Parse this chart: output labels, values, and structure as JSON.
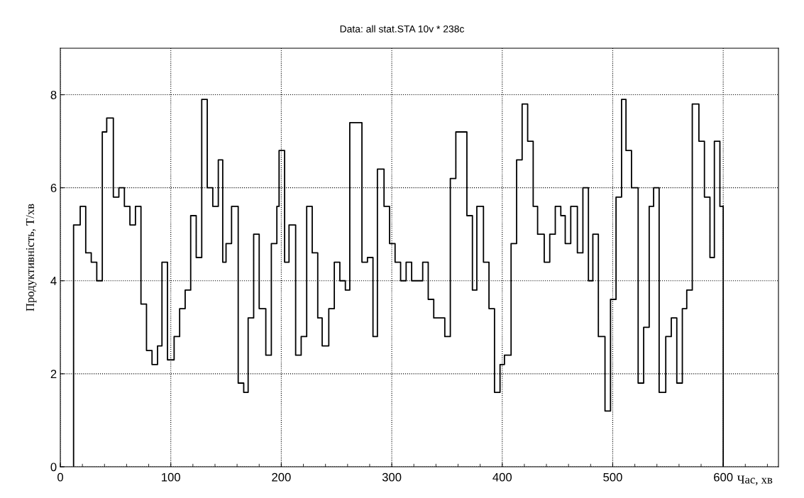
{
  "chart_data": {
    "type": "step",
    "title": "Data: all stat.STA 10v * 238c",
    "xlabel": "Час, хв",
    "ylabel": "Продуктивність, Т/хв",
    "xlim": [
      0,
      650
    ],
    "xticks": [
      0,
      100,
      200,
      300,
      400,
      500,
      600
    ],
    "ylim": [
      0,
      9
    ],
    "yticks": [
      0,
      2,
      4,
      6,
      8
    ],
    "grid": true,
    "line_style": "solid",
    "marker": "none",
    "series": [
      {
        "color": "#000000",
        "x": [
          12,
          12,
          18,
          23,
          28,
          33,
          38,
          42,
          48,
          53,
          58,
          63,
          68,
          73,
          78,
          83,
          88,
          92,
          97,
          103,
          108,
          113,
          118,
          123,
          128,
          133,
          138,
          143,
          147,
          150,
          155,
          161,
          166,
          170,
          175,
          180,
          186,
          191,
          196,
          198,
          203,
          207,
          213,
          218,
          223,
          228,
          233,
          237,
          243,
          248,
          253,
          258,
          262,
          273,
          278,
          283,
          287,
          293,
          298,
          303,
          308,
          313,
          318,
          328,
          333,
          338,
          348,
          353,
          358,
          368,
          373,
          377,
          383,
          388,
          393,
          398,
          402,
          408,
          413,
          418,
          423,
          428,
          432,
          438,
          443,
          448,
          453,
          457,
          462,
          468,
          473,
          478,
          482,
          487,
          493,
          498,
          503,
          508,
          512,
          517,
          523,
          528,
          533,
          537,
          542,
          548,
          553,
          558,
          563,
          567,
          572,
          578,
          583,
          588,
          592,
          597,
          600
        ],
        "values": [
          0,
          5.2,
          5.6,
          4.6,
          4.4,
          4.0,
          7.2,
          7.5,
          5.8,
          6.0,
          5.6,
          5.2,
          5.6,
          3.5,
          2.5,
          2.2,
          2.6,
          4.4,
          2.3,
          2.8,
          3.4,
          3.8,
          5.4,
          4.5,
          7.9,
          6.0,
          5.6,
          6.6,
          4.4,
          4.8,
          5.6,
          1.8,
          1.6,
          3.2,
          5.0,
          3.4,
          2.4,
          4.8,
          5.6,
          6.8,
          4.4,
          5.2,
          2.4,
          2.8,
          5.6,
          4.6,
          3.2,
          2.6,
          3.4,
          4.4,
          4.0,
          3.8,
          7.4,
          4.4,
          4.5,
          2.8,
          6.4,
          5.6,
          4.8,
          4.4,
          4.0,
          4.4,
          4.0,
          4.4,
          3.6,
          3.2,
          2.8,
          6.2,
          7.2,
          5.4,
          3.8,
          5.6,
          4.4,
          3.4,
          1.6,
          2.2,
          2.4,
          4.8,
          6.6,
          7.8,
          7.0,
          5.6,
          5.0,
          4.4,
          5.0,
          5.6,
          5.4,
          4.8,
          5.6,
          4.6,
          6.0,
          4.0,
          5.0,
          2.8,
          1.2,
          3.6,
          5.8,
          7.9,
          6.8,
          6.0,
          1.8,
          3.0,
          5.6,
          6.0,
          1.6,
          2.8,
          3.2,
          1.8,
          3.4,
          3.8,
          7.8,
          7.0,
          5.8,
          4.5,
          7.0,
          5.6,
          0
        ]
      }
    ]
  }
}
